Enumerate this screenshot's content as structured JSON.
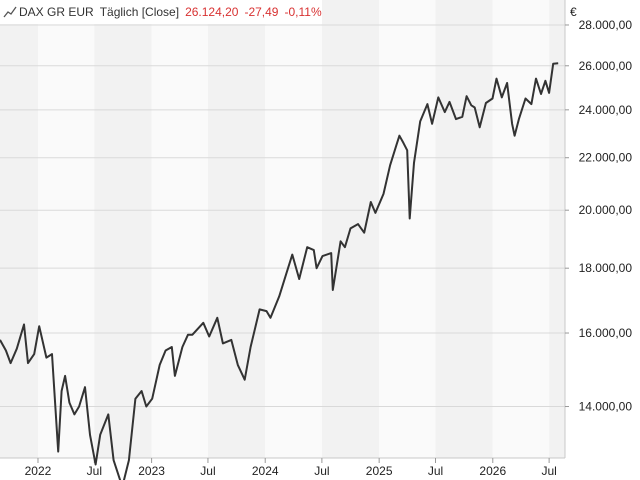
{
  "header": {
    "symbol": "DAX GR EUR",
    "period": "Täglich [Close]",
    "last": "26.124,20",
    "change": "-27,49",
    "change_pct": "-0,11%",
    "change_color": "#d83232",
    "icon": "line-chart-icon"
  },
  "currency": "€",
  "chart_data": {
    "type": "line",
    "title": "DAX GR EUR",
    "xlabel": "",
    "ylabel": "",
    "y_scale": "log",
    "ylim": [
      12750,
      29300
    ],
    "xlim": [
      "2021-09-01",
      "2026-08-21"
    ],
    "y_ticks": [
      {
        "value": 14000,
        "label": "14.000,00"
      },
      {
        "value": 16000,
        "label": "16.000,00"
      },
      {
        "value": 18000,
        "label": "18.000,00"
      },
      {
        "value": 20000,
        "label": "20.000,00"
      },
      {
        "value": 22000,
        "label": "22.000,00"
      },
      {
        "value": 24000,
        "label": "24.000,00"
      },
      {
        "value": 26000,
        "label": "26.000,00"
      },
      {
        "value": 28000,
        "label": "28.000,00"
      }
    ],
    "x_ticks": [
      {
        "date": "2022-01-01",
        "label": "2022"
      },
      {
        "date": "2022-07-01",
        "label": "Jul"
      },
      {
        "date": "2023-01-01",
        "label": "2023"
      },
      {
        "date": "2023-07-01",
        "label": "Jul"
      },
      {
        "date": "2024-01-01",
        "label": "2024"
      },
      {
        "date": "2024-07-01",
        "label": "Jul"
      },
      {
        "date": "2025-01-01",
        "label": "2025"
      },
      {
        "date": "2025-07-01",
        "label": "Jul"
      },
      {
        "date": "2026-01-01",
        "label": "2026"
      },
      {
        "date": "2026-07-01",
        "label": "Jul"
      }
    ],
    "grid": true,
    "line_color": "#333333",
    "series": [
      {
        "points": [
          [
            "2021-09-01",
            15800
          ],
          [
            "2021-09-20",
            15500
          ],
          [
            "2021-10-05",
            15150
          ],
          [
            "2021-10-25",
            15550
          ],
          [
            "2021-11-17",
            16250
          ],
          [
            "2021-11-30",
            15150
          ],
          [
            "2021-12-20",
            15400
          ],
          [
            "2022-01-05",
            16200
          ],
          [
            "2022-01-28",
            15300
          ],
          [
            "2022-02-15",
            15400
          ],
          [
            "2022-03-07",
            12900
          ],
          [
            "2022-03-18",
            14400
          ],
          [
            "2022-03-29",
            14800
          ],
          [
            "2022-04-12",
            14100
          ],
          [
            "2022-04-28",
            13800
          ],
          [
            "2022-05-13",
            14000
          ],
          [
            "2022-06-01",
            14500
          ],
          [
            "2022-06-17",
            13300
          ],
          [
            "2022-07-05",
            12600
          ],
          [
            "2022-07-20",
            13300
          ],
          [
            "2022-08-15",
            13800
          ],
          [
            "2022-09-01",
            12700
          ],
          [
            "2022-09-29",
            12100
          ],
          [
            "2022-10-20",
            12700
          ],
          [
            "2022-11-10",
            14200
          ],
          [
            "2022-11-30",
            14400
          ],
          [
            "2022-12-15",
            14000
          ],
          [
            "2023-01-03",
            14200
          ],
          [
            "2023-01-27",
            15100
          ],
          [
            "2023-02-15",
            15500
          ],
          [
            "2023-03-07",
            15600
          ],
          [
            "2023-03-17",
            14800
          ],
          [
            "2023-04-10",
            15600
          ],
          [
            "2023-04-28",
            15950
          ],
          [
            "2023-05-12",
            15950
          ],
          [
            "2023-06-01",
            16150
          ],
          [
            "2023-06-16",
            16300
          ],
          [
            "2023-07-05",
            15900
          ],
          [
            "2023-07-31",
            16450
          ],
          [
            "2023-08-18",
            15700
          ],
          [
            "2023-09-14",
            15800
          ],
          [
            "2023-10-05",
            15100
          ],
          [
            "2023-10-27",
            14700
          ],
          [
            "2023-11-15",
            15600
          ],
          [
            "2023-12-14",
            16700
          ],
          [
            "2024-01-05",
            16650
          ],
          [
            "2024-01-18",
            16450
          ],
          [
            "2024-02-15",
            17100
          ],
          [
            "2024-03-08",
            17800
          ],
          [
            "2024-03-28",
            18450
          ],
          [
            "2024-04-19",
            17650
          ],
          [
            "2024-05-15",
            18700
          ],
          [
            "2024-06-05",
            18600
          ],
          [
            "2024-06-14",
            18000
          ],
          [
            "2024-07-03",
            18400
          ],
          [
            "2024-07-31",
            18500
          ],
          [
            "2024-08-05",
            17300
          ],
          [
            "2024-08-30",
            18900
          ],
          [
            "2024-09-13",
            18700
          ],
          [
            "2024-10-01",
            19350
          ],
          [
            "2024-10-25",
            19500
          ],
          [
            "2024-11-14",
            19200
          ],
          [
            "2024-12-05",
            20300
          ],
          [
            "2024-12-20",
            19900
          ],
          [
            "2025-01-15",
            20600
          ],
          [
            "2025-02-05",
            21700
          ],
          [
            "2025-02-25",
            22500
          ],
          [
            "2025-03-07",
            22900
          ],
          [
            "2025-03-20",
            22600
          ],
          [
            "2025-04-01",
            22300
          ],
          [
            "2025-04-09",
            19700
          ],
          [
            "2025-04-23",
            21800
          ],
          [
            "2025-05-13",
            23500
          ],
          [
            "2025-06-05",
            24250
          ],
          [
            "2025-06-20",
            23400
          ],
          [
            "2025-07-10",
            24550
          ],
          [
            "2025-07-31",
            23900
          ],
          [
            "2025-08-15",
            24350
          ],
          [
            "2025-09-05",
            23600
          ],
          [
            "2025-09-25",
            23700
          ],
          [
            "2025-10-09",
            24600
          ],
          [
            "2025-10-24",
            24200
          ],
          [
            "2025-11-04",
            24100
          ],
          [
            "2025-11-20",
            23250
          ],
          [
            "2025-12-10",
            24300
          ],
          [
            "2025-12-31",
            24500
          ],
          [
            "2026-01-13",
            25400
          ],
          [
            "2026-01-30",
            24550
          ],
          [
            "2026-02-16",
            25200
          ],
          [
            "2026-03-04",
            23400
          ],
          [
            "2026-03-12",
            22900
          ],
          [
            "2026-03-26",
            23600
          ],
          [
            "2026-04-16",
            24500
          ],
          [
            "2026-05-05",
            24250
          ],
          [
            "2026-05-20",
            25400
          ],
          [
            "2026-06-05",
            24700
          ],
          [
            "2026-06-19",
            25300
          ],
          [
            "2026-07-01",
            24750
          ],
          [
            "2026-07-14",
            26100
          ],
          [
            "2026-07-30",
            26124
          ]
        ]
      }
    ]
  }
}
